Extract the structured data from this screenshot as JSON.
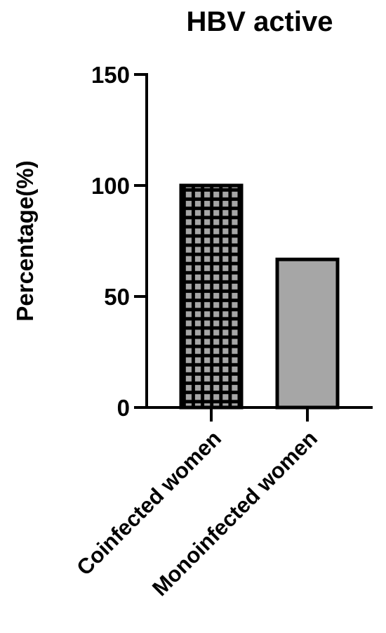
{
  "chart_data": {
    "type": "bar",
    "title": "HBV active",
    "ylabel": "Percentage(%)",
    "xlabel": "",
    "ylim": [
      0,
      150
    ],
    "yticks": [
      0,
      50,
      100,
      150
    ],
    "categories": [
      "Coinfected women",
      "Monoinfected women"
    ],
    "values": [
      100,
      66.7
    ],
    "bar_patterns": [
      "grid",
      "solid"
    ],
    "colors": {
      "bar_fill": "#a6a6a6",
      "bar_edge": "#000000",
      "axis": "#000000"
    },
    "grid": false
  }
}
